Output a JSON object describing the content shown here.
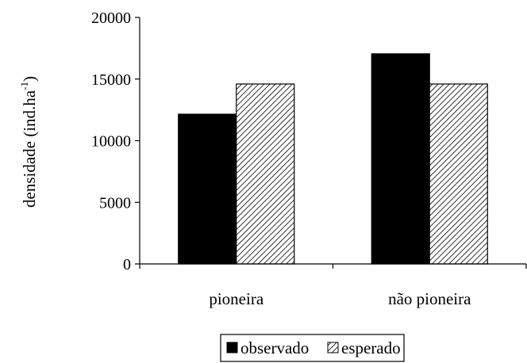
{
  "chart_data": {
    "type": "bar",
    "categories": [
      "pioneira",
      "não pioneira"
    ],
    "series": [
      {
        "name": "observado",
        "values": [
          12150,
          17050
        ],
        "color": "#000000",
        "fill": "solid"
      },
      {
        "name": "esperado",
        "values": [
          14600,
          14600
        ],
        "color": "#000000",
        "fill": "diagonal-hatch"
      }
    ],
    "ylabel_main": "densidade (ind.ha",
    "ylabel_sup": "-1",
    "ylabel_end": ")",
    "ylim": [
      0,
      20000
    ],
    "yticks": [
      "0",
      "5000",
      "10000",
      "15000",
      "20000"
    ],
    "grid": false,
    "legend": {
      "placement": "bottom-center",
      "items": [
        "observado",
        "esperado"
      ]
    }
  }
}
